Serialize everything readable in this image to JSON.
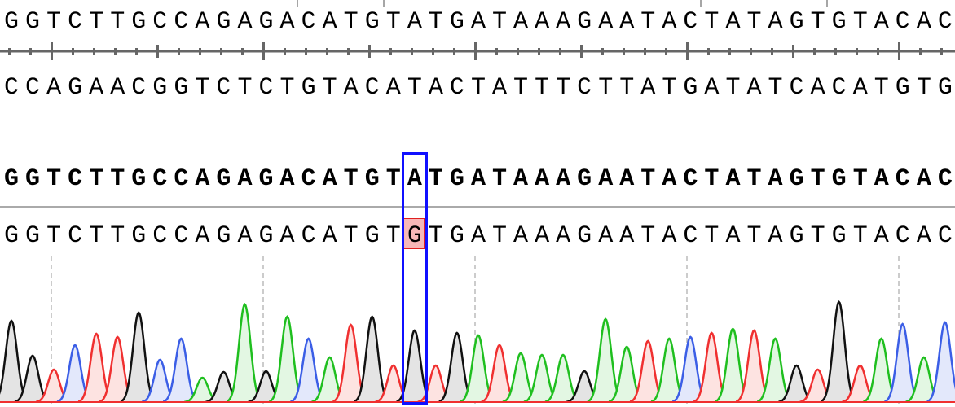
{
  "top_strand": "GGTCTTGCCAGAGACATGTATGATAAAGAATACTATAGTGTACAC",
  "complement_strand": "CCAGAACGGTCTCTGTACATACTATTTCTTATGATATCACATGTG",
  "reference_sequence": "GGTCTTGCCAGAGACATGTATGATAAAGAATACTATAGTGTACAC",
  "read_sequence": "GGTCTTGCCAGAGACATGTGTGATAAAGAATACTATAGTGTACAC",
  "selected_position": 20,
  "mismatch": {
    "reference_base": "A",
    "read_base": "G"
  },
  "colors": {
    "A": "#1fbf1f",
    "C": "#3b5ee6",
    "G": "#111111",
    "T": "#f03030",
    "selection": "#1010ff",
    "mismatch_fill": "#f7b8b8"
  },
  "trace": {
    "bases": "GGTCTTGCCAGAGACATGTGTGATAAAGAATACTATAGTGTACAC",
    "peak_heights": [
      100,
      57,
      40,
      70,
      84,
      80,
      110,
      52,
      78,
      30,
      37,
      120,
      38,
      105,
      78,
      55,
      95,
      105,
      45,
      88,
      45,
      85,
      82,
      70,
      60,
      58,
      58,
      38,
      102,
      68,
      75,
      78,
      80,
      85,
      90,
      88,
      78,
      45,
      40,
      123,
      45,
      78,
      96,
      55,
      98
    ]
  }
}
